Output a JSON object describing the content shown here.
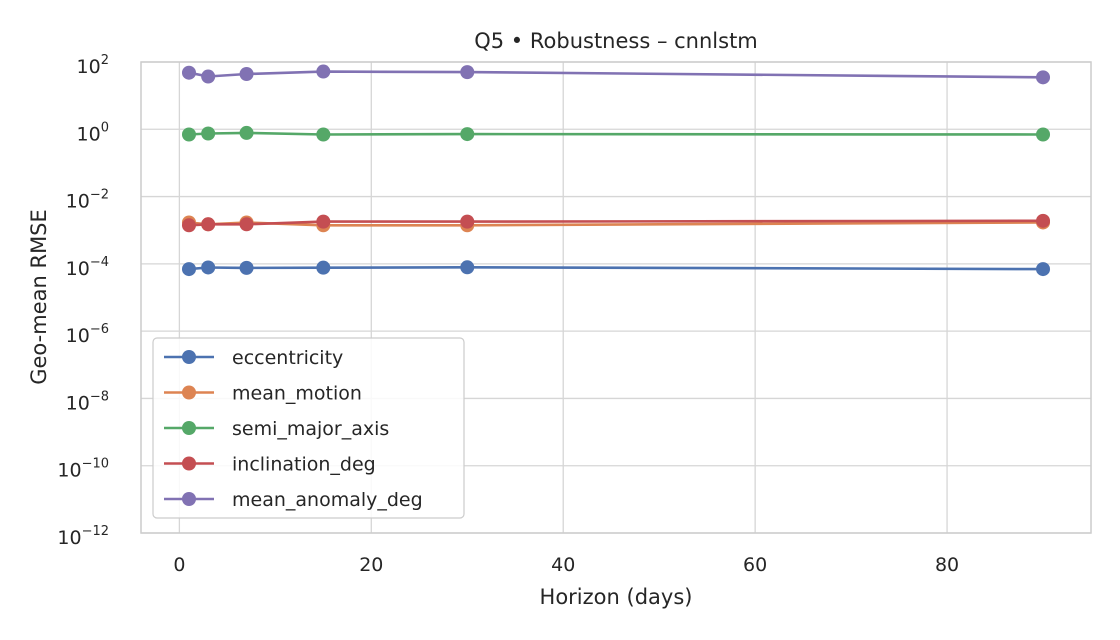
{
  "chart_data": {
    "type": "line",
    "title": "Q5 • Robustness – cnnlstm",
    "xlabel": "Horizon (days)",
    "ylabel": "Geo-mean RMSE",
    "yscale": "log",
    "xlim": [
      -4,
      95
    ],
    "ylim": [
      1e-12,
      100
    ],
    "x": [
      1,
      3,
      7,
      15,
      30,
      90
    ],
    "xticks": [
      0,
      20,
      40,
      60,
      80
    ],
    "xtick_labels": [
      "0",
      "20",
      "40",
      "60",
      "80"
    ],
    "yticks": [
      {
        "value": 100,
        "base": "10",
        "exp": "2"
      },
      {
        "value": 1,
        "base": "10",
        "exp": "0"
      },
      {
        "value": 0.01,
        "base": "10",
        "exp": "−2"
      },
      {
        "value": 0.0001,
        "base": "10",
        "exp": "−4"
      },
      {
        "value": 1e-06,
        "base": "10",
        "exp": "−6"
      },
      {
        "value": 1e-08,
        "base": "10",
        "exp": "−8"
      },
      {
        "value": 1e-10,
        "base": "10",
        "exp": "−10"
      },
      {
        "value": 1e-12,
        "base": "10",
        "exp": "−12"
      }
    ],
    "grid": true,
    "legend_position": "lower-left",
    "series": [
      {
        "name": "eccentricity",
        "color": "#4c72b0",
        "values": [
          7e-05,
          7.8e-05,
          7.6e-05,
          7.7e-05,
          7.9e-05,
          7e-05
        ]
      },
      {
        "name": "mean_motion",
        "color": "#dd8452",
        "values": [
          0.0017,
          0.0015,
          0.0017,
          0.0014,
          0.0014,
          0.0017
        ]
      },
      {
        "name": "semi_major_axis",
        "color": "#55a868",
        "values": [
          0.7,
          0.75,
          0.78,
          0.7,
          0.72,
          0.7
        ]
      },
      {
        "name": "inclination_deg",
        "color": "#c44e52",
        "values": [
          0.0014,
          0.0015,
          0.0015,
          0.0018,
          0.0018,
          0.0019
        ]
      },
      {
        "name": "mean_anomaly_deg",
        "color": "#8172b3",
        "values": [
          48,
          37,
          44,
          52,
          50,
          35
        ]
      }
    ]
  }
}
